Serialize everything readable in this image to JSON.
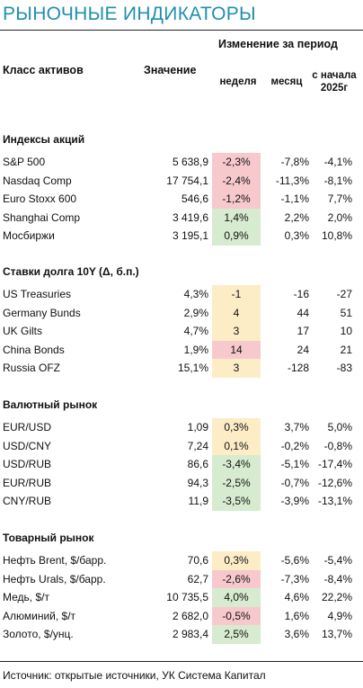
{
  "title": "РЫНОЧНЫЕ ИНДИКАТОРЫ",
  "header": {
    "change_label": "Изменение за период",
    "class_label": "Класс активов",
    "value_label": "Значение",
    "week_label": "неделя",
    "month_label": "месяц",
    "ytd_label_1": "с начала",
    "ytd_label_2": "2025г"
  },
  "sections": [
    {
      "title": "Индексы акций",
      "rows": [
        {
          "name": "S&P 500",
          "value": "5 638,9",
          "week": "-2,3%",
          "month": "-7,8%",
          "ytd": "-4,1%",
          "week_bg": "red"
        },
        {
          "name": "Nasdaq Comp",
          "value": "17 754,1",
          "week": "-2,4%",
          "month": "-11,3%",
          "ytd": "-8,1%",
          "week_bg": "red"
        },
        {
          "name": "Euro Stoxx 600",
          "value": "546,6",
          "week": "-1,2%",
          "month": "-1,1%",
          "ytd": "7,7%",
          "week_bg": "red"
        },
        {
          "name": "Shanghai Comp",
          "value": "3 419,6",
          "week": "1,4%",
          "month": "2,2%",
          "ytd": "2,0%",
          "week_bg": "green"
        },
        {
          "name": "Мосбиржи",
          "value": "3 195,1",
          "week": "0,9%",
          "month": "0,3%",
          "ytd": "10,8%",
          "week_bg": "green"
        }
      ]
    },
    {
      "title": "Ставки долга 10Y (Δ, б.п.)",
      "rows": [
        {
          "name": "US Treasuries",
          "value": "4,3%",
          "week": "-1",
          "month": "-16",
          "ytd": "-27",
          "week_bg": "yellow"
        },
        {
          "name": "Germany Bunds",
          "value": "2,9%",
          "week": "4",
          "month": "44",
          "ytd": "51",
          "week_bg": "yellow"
        },
        {
          "name": "UK Gilts",
          "value": "4,7%",
          "week": "3",
          "month": "17",
          "ytd": "10",
          "week_bg": "yellow"
        },
        {
          "name": "China Bonds",
          "value": "1,9%",
          "week": "14",
          "month": "24",
          "ytd": "21",
          "week_bg": "red"
        },
        {
          "name": "Russia OFZ",
          "value": "15,1%",
          "week": "3",
          "month": "-128",
          "ytd": "-83",
          "week_bg": "yellow"
        }
      ]
    },
    {
      "title": "Валютный рынок",
      "rows": [
        {
          "name": "EUR/USD",
          "value": "1,09",
          "week": "0,3%",
          "month": "3,7%",
          "ytd": "5,0%",
          "week_bg": "yellow"
        },
        {
          "name": "USD/CNY",
          "value": "7,24",
          "week": "0,1%",
          "month": "-0,2%",
          "ytd": "-0,8%",
          "week_bg": "yellow"
        },
        {
          "name": "USD/RUB",
          "value": "86,6",
          "week": "-3,4%",
          "month": "-5,1%",
          "ytd": "-17,4%",
          "week_bg": "green"
        },
        {
          "name": "EUR/RUB",
          "value": "94,3",
          "week": "-2,5%",
          "month": "-0,7%",
          "ytd": "-12,6%",
          "week_bg": "green"
        },
        {
          "name": "CNY/RUB",
          "value": "11,9",
          "week": "-3,5%",
          "month": "-3,9%",
          "ytd": "-13,1%",
          "week_bg": "green"
        }
      ]
    },
    {
      "title": "Товарный рынок",
      "rows": [
        {
          "name": "Нефть Brent, $/барр.",
          "value": "70,6",
          "week": "0,3%",
          "month": "-5,6%",
          "ytd": "-5,4%",
          "week_bg": "yellow"
        },
        {
          "name": "Нефть Urals, $/барр.",
          "value": "62,7",
          "week": "-2,6%",
          "month": "-7,3%",
          "ytd": "-8,4%",
          "week_bg": "red"
        },
        {
          "name": "Медь, $/т",
          "value": "10 735,5",
          "week": "4,0%",
          "month": "4,6%",
          "ytd": "22,2%",
          "week_bg": "green"
        },
        {
          "name": "Алюминий, $/т",
          "value": "2 682,0",
          "week": "-0,5%",
          "month": "1,6%",
          "ytd": "4,9%",
          "week_bg": "red"
        },
        {
          "name": "Золото, $/унц.",
          "value": "2 983,4",
          "week": "2,5%",
          "month": "3,6%",
          "ytd": "13,7%",
          "week_bg": "green"
        }
      ]
    }
  ],
  "colors": {
    "title": "#1f8fb0",
    "red": "#f7c9cd",
    "green": "#d6ebcf",
    "yellow": "#fdedc7"
  },
  "source": "Источник: открытые источники, УК Система Капитал"
}
